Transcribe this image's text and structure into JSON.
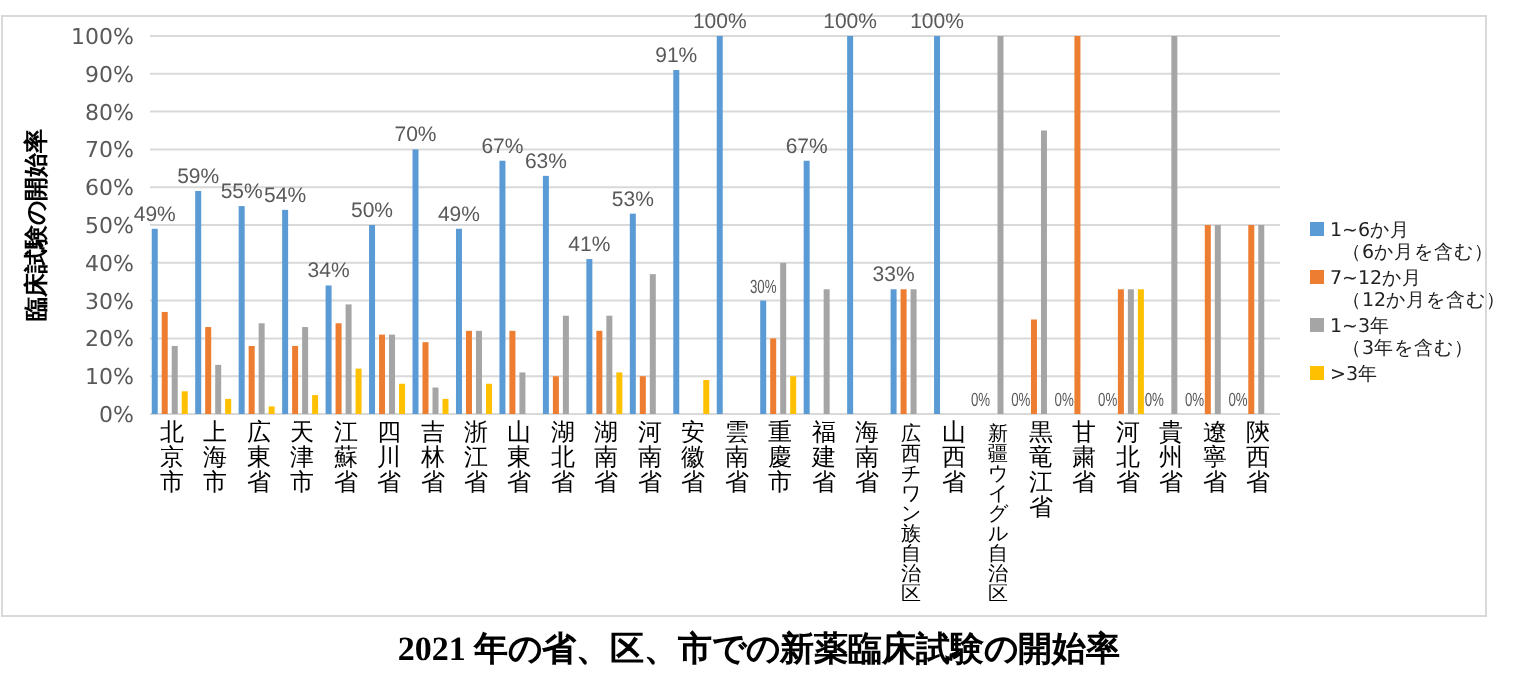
{
  "chart_data": {
    "type": "bar",
    "title": "2021 年の省、区、市での新薬臨床試験の開始率",
    "ylabel": "臨床試験の開始率",
    "categories": [
      "北京市",
      "上海市",
      "広東省",
      "天津市",
      "江蘇省",
      "四川省",
      "吉林省",
      "浙江省",
      "山東省",
      "湖北省",
      "湖南省",
      "河南省",
      "安徽省",
      "雲南省",
      "重慶市",
      "福建省",
      "海南省",
      "広西チワン族自治区",
      "山西省",
      "新疆ウイグル自治区",
      "黒竜江省",
      "甘粛省",
      "河北省",
      "貴州省",
      "遼寧省",
      "陝西省"
    ],
    "series": [
      {
        "name": "1~6か月（6か月を含む）",
        "color": "#5b9bd5",
        "values": [
          49,
          59,
          55,
          54,
          34,
          50,
          70,
          49,
          67,
          63,
          41,
          53,
          91,
          100,
          30,
          67,
          100,
          33,
          100,
          0,
          0,
          0,
          0,
          0,
          0,
          0
        ],
        "value_labels": [
          "49%",
          "59%",
          "55%",
          "54%",
          "34%",
          "50%",
          "70%",
          "49%",
          "67%",
          "63%",
          "41%",
          "53%",
          "91%",
          "100%",
          "30%",
          "67%",
          "100%",
          "33%",
          "100%",
          "0%",
          "0%",
          "0%",
          "0%",
          "0%",
          "0%",
          "0%"
        ]
      },
      {
        "name": "7~12か月（12か月を含む）",
        "color": "#ed7d31",
        "values": [
          27,
          23,
          18,
          18,
          24,
          21,
          19,
          22,
          22,
          10,
          22,
          10,
          0,
          0,
          20,
          0,
          0,
          33,
          0,
          0,
          25,
          100,
          33,
          0,
          50,
          50
        ]
      },
      {
        "name": "1~3年（3年を含む）",
        "color": "#a5a5a5",
        "values": [
          18,
          13,
          24,
          23,
          29,
          21,
          7,
          22,
          11,
          26,
          26,
          37,
          0,
          0,
          40,
          33,
          0,
          33,
          0,
          100,
          75,
          0,
          33,
          100,
          50,
          50
        ]
      },
      {
        "name": ">3年",
        "color": "#ffc000",
        "values": [
          6,
          4,
          2,
          5,
          12,
          8,
          4,
          8,
          0,
          0,
          11,
          0,
          9,
          0,
          10,
          0,
          0,
          0,
          0,
          0,
          0,
          0,
          33,
          0,
          0,
          0
        ]
      }
    ],
    "ylim": [
      0,
      100
    ],
    "yticks": [
      {
        "value": 0,
        "label": "0%"
      },
      {
        "value": 10,
        "label": "10%"
      },
      {
        "value": 20,
        "label": "20%"
      },
      {
        "value": 30,
        "label": "30%"
      },
      {
        "value": 40,
        "label": "40%"
      },
      {
        "value": 50,
        "label": "50%"
      },
      {
        "value": 60,
        "label": "60%"
      },
      {
        "value": 70,
        "label": "70%"
      },
      {
        "value": 80,
        "label": "80%"
      },
      {
        "value": 90,
        "label": "90%"
      },
      {
        "value": 100,
        "label": "100%"
      }
    ],
    "grid": "y",
    "legend": "right"
  }
}
